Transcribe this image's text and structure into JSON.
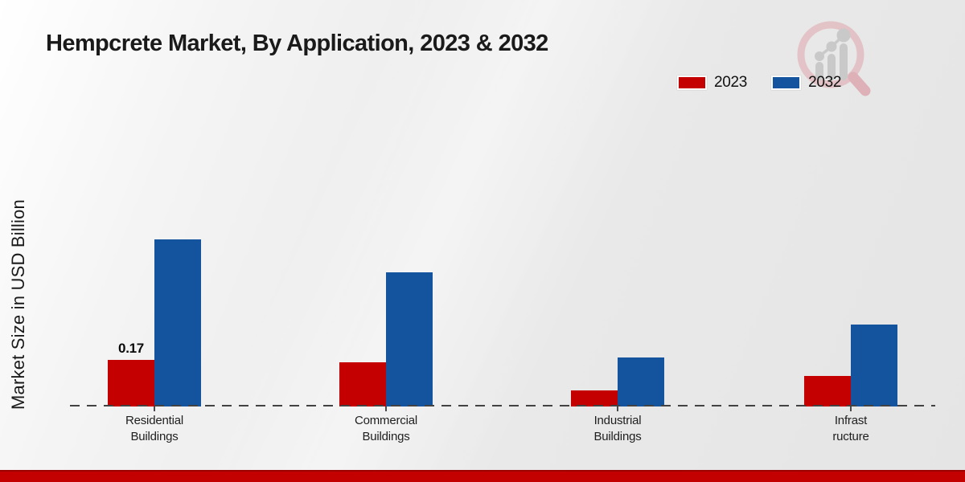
{
  "chart_data": {
    "type": "bar",
    "title": "Hempcrete Market, By Application, 2023 & 2032",
    "ylabel": "Market Size in USD Billion",
    "xlabel": "",
    "categories": [
      "Residential Buildings",
      "Commercial Buildings",
      "Industrial Buildings",
      "Infrastructure"
    ],
    "category_label_lines": [
      [
        "Residential",
        "Buildings"
      ],
      [
        "Commercial",
        "Buildings"
      ],
      [
        "Industrial",
        "Buildings"
      ],
      [
        "Infrast",
        "ructure"
      ]
    ],
    "series": [
      {
        "name": "2023",
        "color": "#c40000",
        "values": [
          0.17,
          0.16,
          0.06,
          0.11
        ]
      },
      {
        "name": "2032",
        "color": "#14539e",
        "values": [
          0.61,
          0.49,
          0.18,
          0.3
        ]
      }
    ],
    "value_labels": [
      {
        "series": "2023",
        "category": "Residential Buildings",
        "text": "0.17"
      }
    ],
    "ylim": [
      0,
      0.7
    ],
    "grid": false,
    "y_axis_ticks_shown": false,
    "legend_position": "top-right",
    "baseline_style": "dashed"
  },
  "branding": {
    "logo_icon": "magnifier-bar-chart-logo",
    "footer_color": "#c30101"
  },
  "colors": {
    "accent_red": "#c40000",
    "accent_blue": "#14539e",
    "text": "#1a1a1a",
    "logo_pink": "#dfb6ba",
    "logo_gray": "#c9c9c9"
  }
}
